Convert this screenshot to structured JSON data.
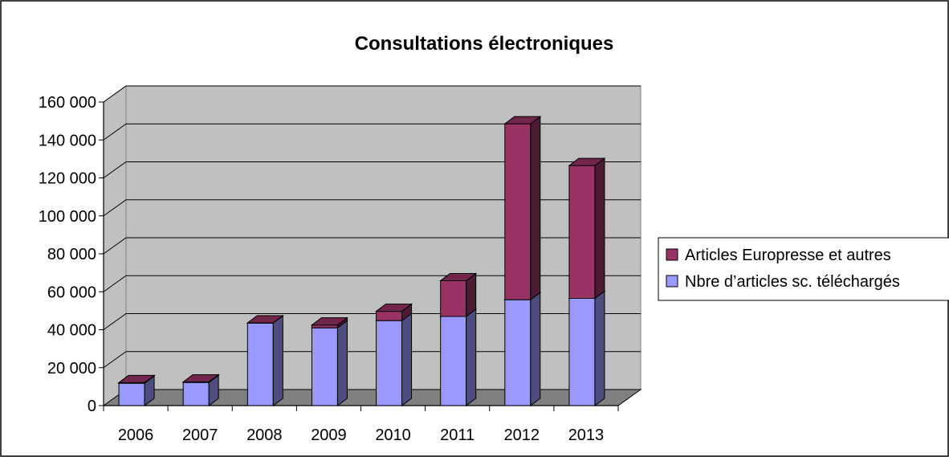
{
  "chart_data": {
    "type": "bar",
    "stacked": true,
    "three_d": true,
    "title": "Consultations électroniques",
    "xlabel": "",
    "ylabel": "",
    "categories": [
      "2006",
      "2007",
      "2008",
      "2009",
      "2010",
      "2011",
      "2012",
      "2013"
    ],
    "series": [
      {
        "name": "Nbre d’articles sc. téléchargés",
        "color": "#9999ff",
        "values": [
          11800,
          12200,
          43500,
          41000,
          44800,
          47000,
          55800,
          56500
        ]
      },
      {
        "name": "Articles Europresse et autres",
        "color": "#993366",
        "values": [
          300,
          300,
          100,
          1500,
          4900,
          18800,
          92700,
          70000
        ]
      }
    ],
    "ylim": [
      0,
      160000
    ],
    "yticks": [
      0,
      20000,
      40000,
      60000,
      80000,
      100000,
      120000,
      140000,
      160000
    ],
    "ytick_labels": [
      "0",
      "20 000",
      "40 000",
      "60 000",
      "80 000",
      "100 000",
      "120 000",
      "140 000",
      "160 000"
    ],
    "grid": true,
    "legend_position": "right",
    "plot_background": "#c0c0c0",
    "floor_color": "#808080"
  }
}
